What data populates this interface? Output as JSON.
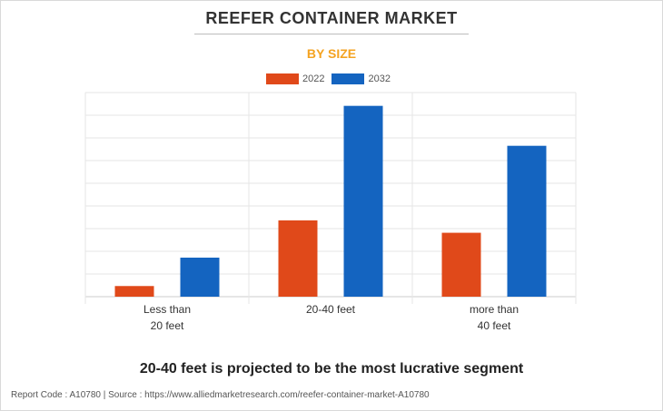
{
  "title": "REEFER CONTAINER MARKET",
  "subtitle": "BY SIZE",
  "headline": "20-40 feet is projected to be the most lucrative segment",
  "footer": "Report Code : A10780  |  Source : https://www.alliedmarketresearch.com/reefer-container-market-A10780",
  "chart_data": {
    "type": "bar",
    "categories": [
      [
        "Less than",
        "20 feet"
      ],
      [
        "20-40 feet"
      ],
      [
        "more than",
        "40 feet"
      ]
    ],
    "series": [
      {
        "name": "2022",
        "color": "#e0491a",
        "values": [
          1.2,
          8.6,
          7.2
        ]
      },
      {
        "name": "2032",
        "color": "#1464c0",
        "values": [
          4.4,
          21.5,
          17.0
        ]
      }
    ],
    "ylim": [
      0,
      23
    ],
    "grid": true,
    "legend": "top-center",
    "xlabel": "",
    "ylabel": ""
  }
}
